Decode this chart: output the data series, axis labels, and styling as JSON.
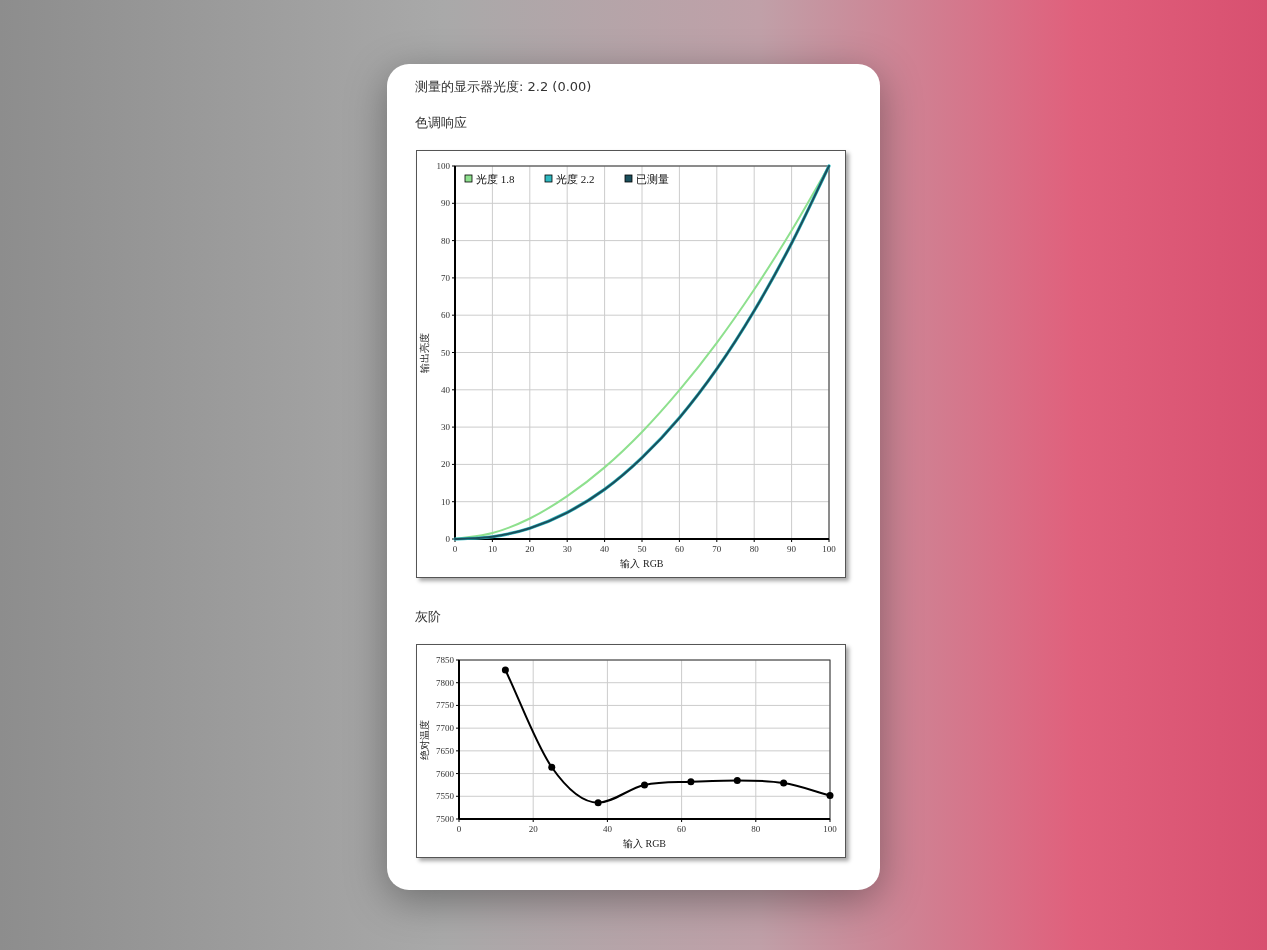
{
  "chart_data": [
    {
      "type": "line",
      "title": "色调响应",
      "annotations": [
        "测量的显示器光度: 2.2 (0.00)"
      ],
      "xlabel": "输入 RGB",
      "ylabel": "输出亮度",
      "xlim": [
        0,
        100
      ],
      "ylim": [
        0,
        100
      ],
      "xticks": [
        0,
        10,
        20,
        30,
        40,
        50,
        60,
        70,
        80,
        90,
        100
      ],
      "yticks": [
        0,
        10,
        20,
        30,
        40,
        50,
        60,
        70,
        80,
        90,
        100
      ],
      "grid": true,
      "legend": "top left",
      "marker": "none",
      "line_style": "solid",
      "x": [
        0,
        10,
        20,
        30,
        40,
        50,
        60,
        70,
        80,
        90,
        100
      ],
      "series": [
        {
          "name": "光度 1.8",
          "color": "#8ee08e",
          "values": [
            0,
            1.6,
            5.5,
            11.5,
            19.2,
            28.7,
            39.9,
            52.6,
            66.9,
            82.7,
            100
          ]
        },
        {
          "name": "光度 2.2",
          "color": "#2fb8c0",
          "values": [
            0,
            0.6,
            2.9,
            7.1,
            13.3,
            21.8,
            32.5,
            45.6,
            61.2,
            79.3,
            100
          ]
        },
        {
          "name": "已测量",
          "color": "#1b4f5c",
          "values": [
            0,
            0.6,
            2.9,
            7.1,
            13.3,
            21.8,
            32.5,
            45.6,
            61.2,
            79.3,
            100
          ]
        }
      ]
    },
    {
      "type": "line",
      "title": "灰阶",
      "xlabel": "输入 RGB",
      "ylabel": "绝对温度",
      "xlim": [
        0,
        100
      ],
      "ylim": [
        7500,
        7850
      ],
      "xticks": [
        0,
        20,
        40,
        60,
        80,
        100
      ],
      "yticks": [
        7500,
        7550,
        7600,
        7650,
        7700,
        7750,
        7800,
        7850
      ],
      "grid": true,
      "marker": "circle",
      "line_style": "solid",
      "x": [
        12.5,
        25,
        37.5,
        50,
        62.5,
        75,
        87.5,
        100
      ],
      "series": [
        {
          "color": "#000000",
          "values": [
            7828,
            7614,
            7536,
            7575,
            7582,
            7585,
            7579,
            7552
          ]
        }
      ]
    }
  ]
}
